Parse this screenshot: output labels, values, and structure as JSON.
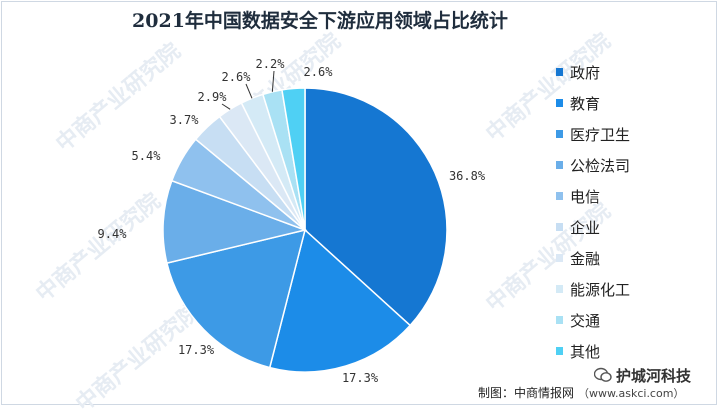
{
  "chart_data": {
    "type": "pie",
    "title": "2021年中国数据安全下游应用领域占比统计",
    "categories": [
      "政府",
      "教育",
      "医疗卫生",
      "公检法司",
      "电信",
      "企业",
      "金融",
      "能源化工",
      "交通",
      "其他"
    ],
    "values": [
      36.8,
      17.3,
      17.3,
      9.4,
      5.4,
      3.7,
      2.9,
      2.6,
      2.2,
      2.6
    ],
    "labels": [
      "36.8%",
      "17.3%",
      "17.3%",
      "9.4%",
      "5.4%",
      "3.7%",
      "2.9%",
      "2.6%",
      "2.2%",
      "2.6%"
    ],
    "colors": [
      "#1577d2",
      "#1c8ce8",
      "#3d9ae6",
      "#6aaee9",
      "#8fc1ee",
      "#c7def3",
      "#dbe8f5",
      "#d4eaf6",
      "#a9e1f4",
      "#4fd0f4"
    ],
    "legend_position": "right"
  },
  "watermark": {
    "text": "中商产业研究院"
  },
  "footer": {
    "source": "制图：中商情报网",
    "url": "（www.askci.com）"
  },
  "wechat": {
    "account": "护城河科技"
  }
}
